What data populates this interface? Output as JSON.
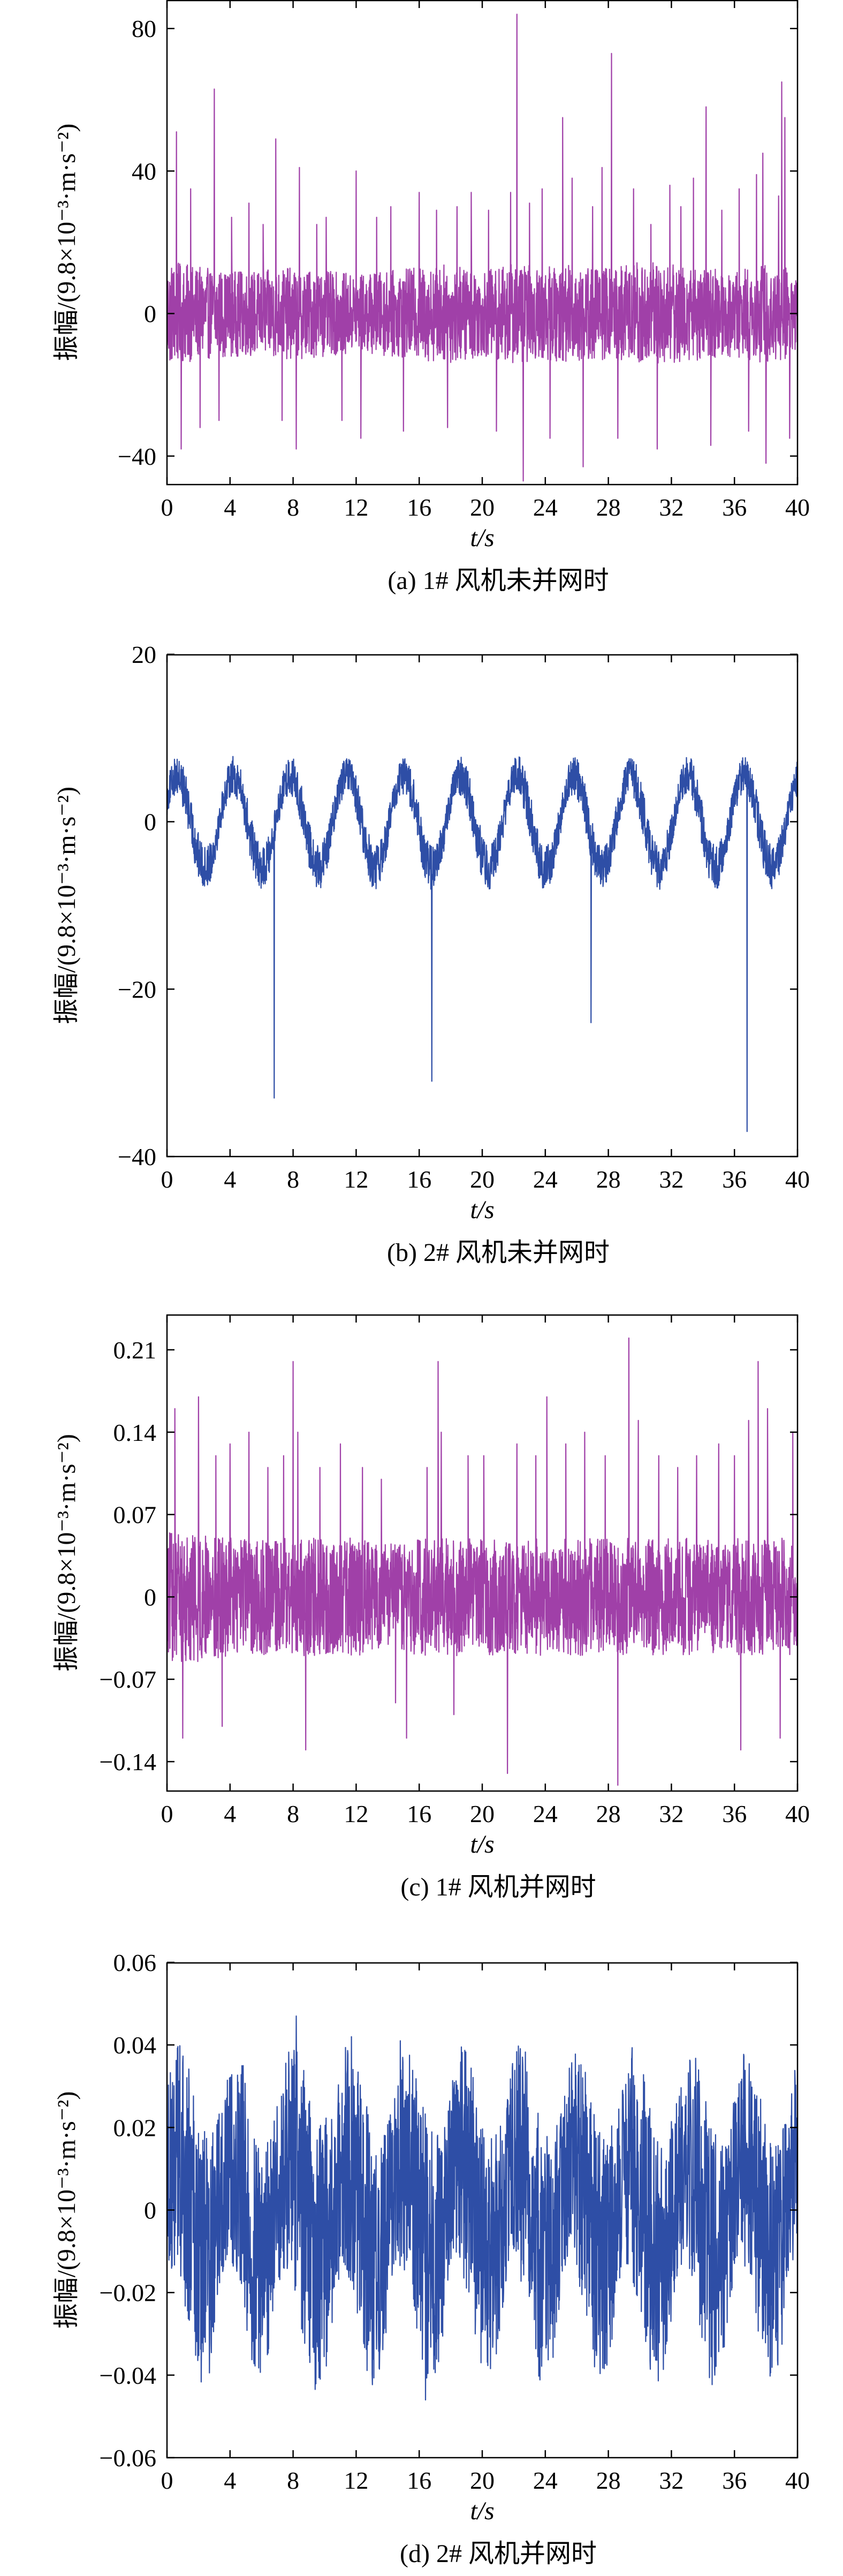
{
  "chart_data": [
    {
      "type": "line",
      "caption": "(a) 1# 风机未并网时",
      "xlabel": "t/s",
      "ylabel": "振幅/(9.8×10⁻³·m·s⁻²)",
      "xlim": [
        0,
        40
      ],
      "ylim": [
        -48,
        88
      ],
      "xticks": [
        0,
        4,
        8,
        12,
        16,
        20,
        24,
        28,
        32,
        36,
        40
      ],
      "yticks": [
        -40,
        0,
        40,
        80
      ],
      "ytick_labels": [
        "−40",
        "0",
        "40",
        "80"
      ],
      "grid": false,
      "color": "#a040a8",
      "series": [
        {
          "signal": {
            "envelope": [
              15,
              13,
              12,
              12,
              13,
              12,
              11,
              12,
              13,
              14,
              12,
              14,
              13,
              14,
              13,
              15,
              14,
              13,
              12,
              14,
              13
            ],
            "period": 0,
            "amplitude": 0
          },
          "spikes": [
            [
              0.6,
              51
            ],
            [
              0.9,
              -38
            ],
            [
              1.5,
              35
            ],
            [
              2.1,
              -32
            ],
            [
              3.0,
              63
            ],
            [
              3.3,
              -30
            ],
            [
              4.1,
              27
            ],
            [
              5.2,
              31
            ],
            [
              6.1,
              25
            ],
            [
              6.9,
              49
            ],
            [
              7.3,
              -30
            ],
            [
              8.2,
              -38
            ],
            [
              8.4,
              41
            ],
            [
              9.5,
              25
            ],
            [
              10.1,
              27
            ],
            [
              11.1,
              -30
            ],
            [
              12.0,
              40
            ],
            [
              12.3,
              -35
            ],
            [
              13.3,
              27
            ],
            [
              14.2,
              30
            ],
            [
              15.0,
              -33
            ],
            [
              16.0,
              34
            ],
            [
              17.1,
              29
            ],
            [
              17.8,
              -32
            ],
            [
              18.4,
              30
            ],
            [
              19.3,
              34
            ],
            [
              20.4,
              29
            ],
            [
              20.9,
              -33
            ],
            [
              21.8,
              34
            ],
            [
              22.2,
              84
            ],
            [
              22.6,
              -47
            ],
            [
              23.0,
              31
            ],
            [
              23.8,
              35
            ],
            [
              24.3,
              -35
            ],
            [
              25.1,
              55
            ],
            [
              25.7,
              38
            ],
            [
              26.4,
              -43
            ],
            [
              27.0,
              30
            ],
            [
              27.6,
              41
            ],
            [
              28.2,
              73
            ],
            [
              28.6,
              -35
            ],
            [
              29.6,
              35
            ],
            [
              30.7,
              25
            ],
            [
              31.1,
              -38
            ],
            [
              31.9,
              36
            ],
            [
              32.6,
              30
            ],
            [
              33.4,
              38
            ],
            [
              34.2,
              58
            ],
            [
              34.5,
              -37
            ],
            [
              35.2,
              29
            ],
            [
              36.3,
              35
            ],
            [
              36.9,
              -33
            ],
            [
              37.4,
              39
            ],
            [
              37.8,
              45
            ],
            [
              38.0,
              -42
            ],
            [
              38.8,
              33
            ],
            [
              39.0,
              65
            ],
            [
              39.2,
              55
            ],
            [
              39.5,
              -35
            ]
          ]
        }
      ]
    },
    {
      "type": "line",
      "caption": "(b) 2# 风机未并网时",
      "xlabel": "t/s",
      "ylabel": "振幅/(9.8×10⁻³·m·s⁻²)",
      "xlim": [
        0,
        40
      ],
      "ylim": [
        -40,
        20
      ],
      "xticks": [
        0,
        4,
        8,
        12,
        16,
        20,
        24,
        28,
        32,
        36,
        40
      ],
      "yticks": [
        -40,
        -20,
        0,
        20
      ],
      "ytick_labels": [
        "−40",
        "−20",
        "0",
        "20"
      ],
      "grid": false,
      "color": "#2e4ea6",
      "series": [
        {
          "signal": {
            "envelope": [
              2.5,
              2.5,
              2.5,
              2.5,
              2.5,
              2.5,
              2.5,
              2.5,
              2.5,
              2.5,
              2.5,
              2.5,
              2.5,
              2.5,
              2.5,
              2.5,
              2.5,
              2.5,
              2.5,
              2.5,
              2.5
            ],
            "period": 3.6,
            "amplitude": 5.5
          },
          "spikes": [
            [
              6.8,
              -33
            ],
            [
              16.8,
              -31
            ],
            [
              26.9,
              -24
            ],
            [
              36.8,
              -37
            ]
          ]
        }
      ]
    },
    {
      "type": "line",
      "caption": "(c) 1# 风机并网时",
      "xlabel": "t/s",
      "ylabel": "振幅/(9.8×10⁻³·m·s⁻²)",
      "xlim": [
        0,
        40
      ],
      "ylim": [
        -0.165,
        0.24
      ],
      "xticks": [
        0,
        4,
        8,
        12,
        16,
        20,
        24,
        28,
        32,
        36,
        40
      ],
      "yticks": [
        -0.14,
        -0.07,
        0,
        0.07,
        0.14,
        0.21
      ],
      "ytick_labels": [
        "−0.14",
        "−0.07",
        "0",
        "0.07",
        "0.14",
        "0.21"
      ],
      "grid": false,
      "color": "#a040a8",
      "series": [
        {
          "signal": {
            "envelope": [
              0.055,
              0.055,
              0.05,
              0.05,
              0.05,
              0.05,
              0.05,
              0.045,
              0.05,
              0.05,
              0.05,
              0.05,
              0.05,
              0.05,
              0.05,
              0.05,
              0.05,
              0.05,
              0.05,
              0.05,
              0.05
            ],
            "period": 0,
            "amplitude": 0
          },
          "spikes": [
            [
              0.5,
              0.16
            ],
            [
              1.0,
              -0.12
            ],
            [
              2.0,
              0.17
            ],
            [
              3.1,
              0.12
            ],
            [
              3.5,
              -0.11
            ],
            [
              4.0,
              0.13
            ],
            [
              5.2,
              0.14
            ],
            [
              6.4,
              0.11
            ],
            [
              7.4,
              0.12
            ],
            [
              8.0,
              0.2
            ],
            [
              8.3,
              0.14
            ],
            [
              8.8,
              -0.13
            ],
            [
              9.7,
              0.11
            ],
            [
              11.0,
              0.13
            ],
            [
              12.4,
              0.11
            ],
            [
              13.6,
              0.1
            ],
            [
              14.5,
              -0.09
            ],
            [
              15.2,
              -0.12
            ],
            [
              16.5,
              0.11
            ],
            [
              17.2,
              0.2
            ],
            [
              17.4,
              0.14
            ],
            [
              18.2,
              -0.1
            ],
            [
              19.1,
              0.12
            ],
            [
              20.1,
              0.12
            ],
            [
              21.6,
              -0.15
            ],
            [
              22.2,
              0.13
            ],
            [
              23.4,
              0.12
            ],
            [
              24.1,
              0.17
            ],
            [
              25.3,
              0.13
            ],
            [
              26.5,
              0.14
            ],
            [
              27.8,
              0.12
            ],
            [
              28.6,
              -0.16
            ],
            [
              29.3,
              0.22
            ],
            [
              29.9,
              0.15
            ],
            [
              31.2,
              0.12
            ],
            [
              32.4,
              0.11
            ],
            [
              33.6,
              0.12
            ],
            [
              35.0,
              0.13
            ],
            [
              36.0,
              0.12
            ],
            [
              36.4,
              -0.13
            ],
            [
              36.9,
              0.15
            ],
            [
              37.5,
              0.2
            ],
            [
              38.1,
              0.16
            ],
            [
              38.9,
              -0.12
            ],
            [
              39.7,
              0.14
            ]
          ]
        }
      ]
    },
    {
      "type": "line",
      "caption": "(d) 2# 风机并网时",
      "xlabel": "t/s",
      "ylabel": "振幅/(9.8×10⁻³·m·s⁻²)",
      "xlim": [
        0,
        40
      ],
      "ylim": [
        -0.06,
        0.06
      ],
      "xticks": [
        0,
        4,
        8,
        12,
        16,
        20,
        24,
        28,
        32,
        36,
        40
      ],
      "yticks": [
        -0.06,
        -0.04,
        -0.02,
        0,
        0.02,
        0.04,
        0.06
      ],
      "ytick_labels": [
        "−0.06",
        "−0.04",
        "−0.02",
        "0",
        "0.02",
        "0.04",
        "0.06"
      ],
      "grid": false,
      "color": "#2e4ea6",
      "series": [
        {
          "signal": {
            "envelope": [
              0.03,
              0.03,
              0.028,
              0.028,
              0.03,
              0.032,
              0.03,
              0.028,
              0.03,
              0.03,
              0.028,
              0.03,
              0.03,
              0.028,
              0.03,
              0.03,
              0.028,
              0.03,
              0.028,
              0.028,
              0.03
            ],
            "period": 3.6,
            "amplitude": 0.012
          },
          "spikes": [
            [
              8.2,
              0.047
            ],
            [
              16.4,
              -0.046
            ],
            [
              11.7,
              0.042
            ],
            [
              14.8,
              0.041
            ]
          ]
        }
      ]
    }
  ]
}
